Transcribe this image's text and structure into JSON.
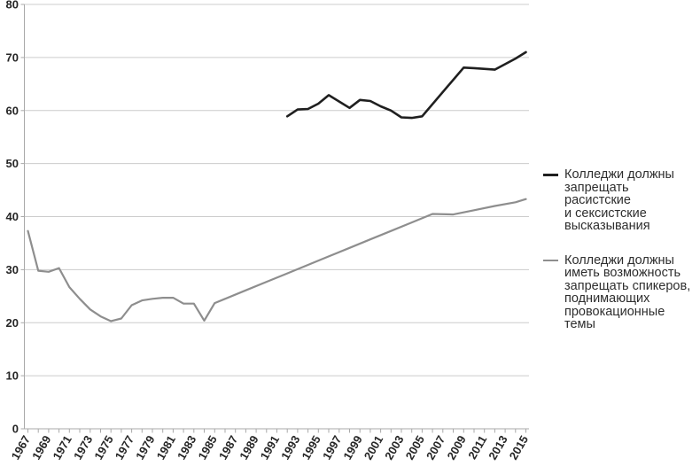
{
  "colors": {
    "background": "#ffffff",
    "dark_line": "#1f1f1f",
    "gray_line": "#8e8e8e",
    "gridline": "#cccccc",
    "axis": "#a9a9a9",
    "tick_label": "#262626",
    "legend_text": "#2e2e2e"
  },
  "legend": {
    "items": [
      {
        "label": "Колледжи должны\nзапрещать\nрасистские\nи сексистские\nвысказывания"
      },
      {
        "label": "Колледжи должны\nиметь возможность\nзапрещать спикеров,\nподнимающих\nпровокационные\nтемы"
      }
    ]
  },
  "chart_data": {
    "type": "line",
    "title": "",
    "xlabel": "",
    "ylabel": "",
    "grid": "horizontal",
    "legend_position": "right",
    "ylim": [
      0,
      80
    ],
    "yticks": [
      0,
      10,
      20,
      30,
      40,
      50,
      60,
      70,
      80
    ],
    "x_range": [
      1967,
      2015
    ],
    "x_minor_tick_step": 1,
    "x_tick_labels": [
      "1967",
      "1969",
      "1971",
      "1973",
      "1975",
      "1977",
      "1979",
      "1981",
      "1983",
      "1985",
      "1987",
      "1989",
      "1991",
      "1993",
      "1995",
      "1997",
      "1999",
      "2001",
      "2003",
      "2005",
      "2007",
      "2009",
      "2011",
      "2013",
      "2015"
    ],
    "series": [
      {
        "name": "Колледжи должны запрещать расистские и сексистские высказывания",
        "color": "#1f1f1f",
        "width": 2.6,
        "points": [
          [
            1992,
            58.9
          ],
          [
            1993,
            60.2
          ],
          [
            1994,
            60.3
          ],
          [
            1995,
            61.3
          ],
          [
            1996,
            62.9
          ],
          [
            1997,
            61.7
          ],
          [
            1998,
            60.5
          ],
          [
            1999,
            62.0
          ],
          [
            2000,
            61.8
          ],
          [
            2001,
            60.8
          ],
          [
            2002,
            60.0
          ],
          [
            2003,
            58.7
          ],
          [
            2004,
            58.6
          ],
          [
            2005,
            58.9
          ],
          [
            2007,
            63.5
          ],
          [
            2009,
            68.1
          ],
          [
            2010,
            68.0
          ],
          [
            2012,
            67.7
          ],
          [
            2014,
            69.8
          ],
          [
            2015,
            71.0
          ]
        ]
      },
      {
        "name": "Колледжи должны иметь возможность запрещать спикеров, поднимающих провокационные темы",
        "color": "#8e8e8e",
        "width": 2.2,
        "points": [
          [
            1967,
            37.3
          ],
          [
            1968,
            29.8
          ],
          [
            1969,
            29.6
          ],
          [
            1970,
            30.3
          ],
          [
            1971,
            26.7
          ],
          [
            1972,
            24.5
          ],
          [
            1973,
            22.5
          ],
          [
            1974,
            21.2
          ],
          [
            1975,
            20.3
          ],
          [
            1976,
            20.8
          ],
          [
            1977,
            23.3
          ],
          [
            1978,
            24.2
          ],
          [
            1979,
            24.5
          ],
          [
            1980,
            24.7
          ],
          [
            1981,
            24.7
          ],
          [
            1982,
            23.6
          ],
          [
            1983,
            23.6
          ],
          [
            1984,
            20.4
          ],
          [
            1985,
            23.7
          ],
          [
            1986,
            24.5
          ],
          [
            1988,
            26.1
          ],
          [
            1990,
            27.7
          ],
          [
            1992,
            29.3
          ],
          [
            1994,
            30.9
          ],
          [
            1996,
            32.5
          ],
          [
            1998,
            34.1
          ],
          [
            2000,
            35.7
          ],
          [
            2002,
            37.3
          ],
          [
            2004,
            38.9
          ],
          [
            2006,
            40.5
          ],
          [
            2008,
            40.4
          ],
          [
            2010,
            41.2
          ],
          [
            2012,
            42.0
          ],
          [
            2014,
            42.7
          ],
          [
            2015,
            43.3
          ]
        ]
      }
    ]
  }
}
